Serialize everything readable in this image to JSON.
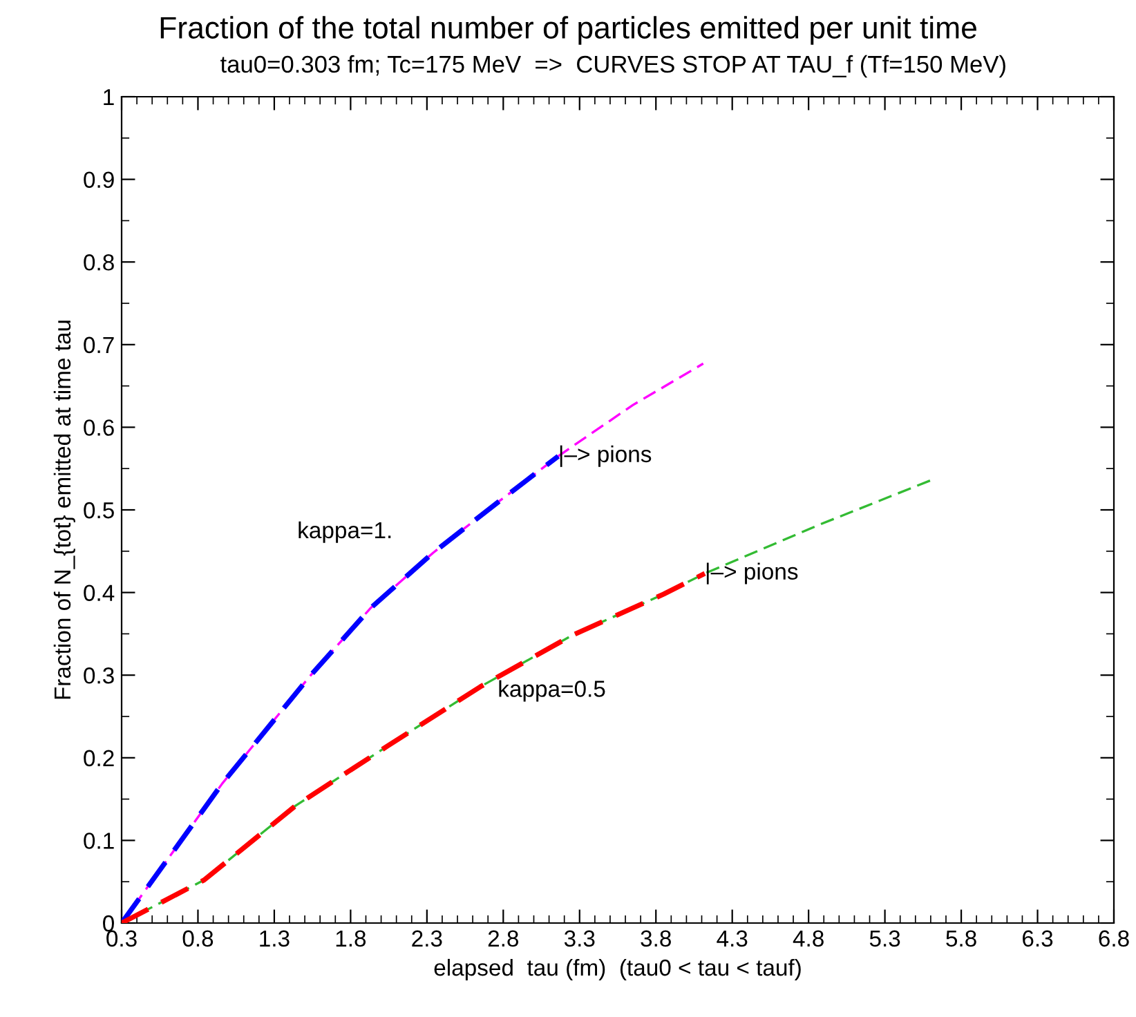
{
  "chart_data": {
    "type": "line",
    "title": "Fraction of the total number of particles emitted per unit time",
    "subtitle": "tau0=0.303 fm; Tc=175 MeV  =>  CURVES STOP AT TAU_f (Tf=150 MeV)",
    "xlabel": "elapsed  tau (fm)  (tau0 < tau < tauf)",
    "ylabel": "Fraction of N_{tot} emitted at time tau",
    "xlim": [
      0.3,
      6.8
    ],
    "ylim": [
      0,
      1
    ],
    "xticks": [
      0.3,
      0.8,
      1.3,
      1.8,
      2.3,
      2.8,
      3.3,
      3.8,
      4.3,
      4.8,
      5.3,
      5.8,
      6.3,
      6.8
    ],
    "yticks": [
      0,
      0.1,
      0.2,
      0.3,
      0.4,
      0.5,
      0.6,
      0.7,
      0.8,
      0.9,
      1
    ],
    "grid": false,
    "legend": false,
    "line_style": "dashed",
    "marker": "none",
    "series": [
      {
        "color": "#ff00ff",
        "x": [
          0.3,
          0.96,
          1.53,
          1.93,
          2.34,
          2.77,
          3.16,
          3.65,
          4.11
        ],
        "values": [
          0,
          0.169,
          0.298,
          0.381,
          0.448,
          0.51,
          0.565,
          0.627,
          0.677
        ]
      },
      {
        "color": "#0000ff",
        "x": [
          0.3,
          0.96,
          1.53,
          1.93,
          2.34,
          2.77,
          3.16
        ],
        "values": [
          0,
          0.169,
          0.298,
          0.381,
          0.448,
          0.51,
          0.565
        ]
      },
      {
        "color": "#33bb33",
        "x": [
          0.3,
          0.84,
          1.44,
          2.04,
          2.65,
          3.25,
          3.85,
          4.12,
          4.87,
          5.63
        ],
        "values": [
          0,
          0.052,
          0.142,
          0.214,
          0.286,
          0.348,
          0.398,
          0.423,
          0.482,
          0.538
        ]
      },
      {
        "color": "#ff0000",
        "x": [
          0.3,
          0.84,
          1.44,
          2.04,
          2.65,
          3.25,
          3.85,
          4.12
        ],
        "values": [
          0,
          0.052,
          0.142,
          0.214,
          0.286,
          0.348,
          0.398,
          0.423
        ]
      }
    ],
    "annotations": [
      "kappa=1.",
      "kappa=0.5",
      {
        "text": "|–> pions",
        "x": 3.16,
        "y": 0.565
      },
      {
        "text": "|–> pions",
        "x": 4.12,
        "y": 0.423
      }
    ]
  }
}
